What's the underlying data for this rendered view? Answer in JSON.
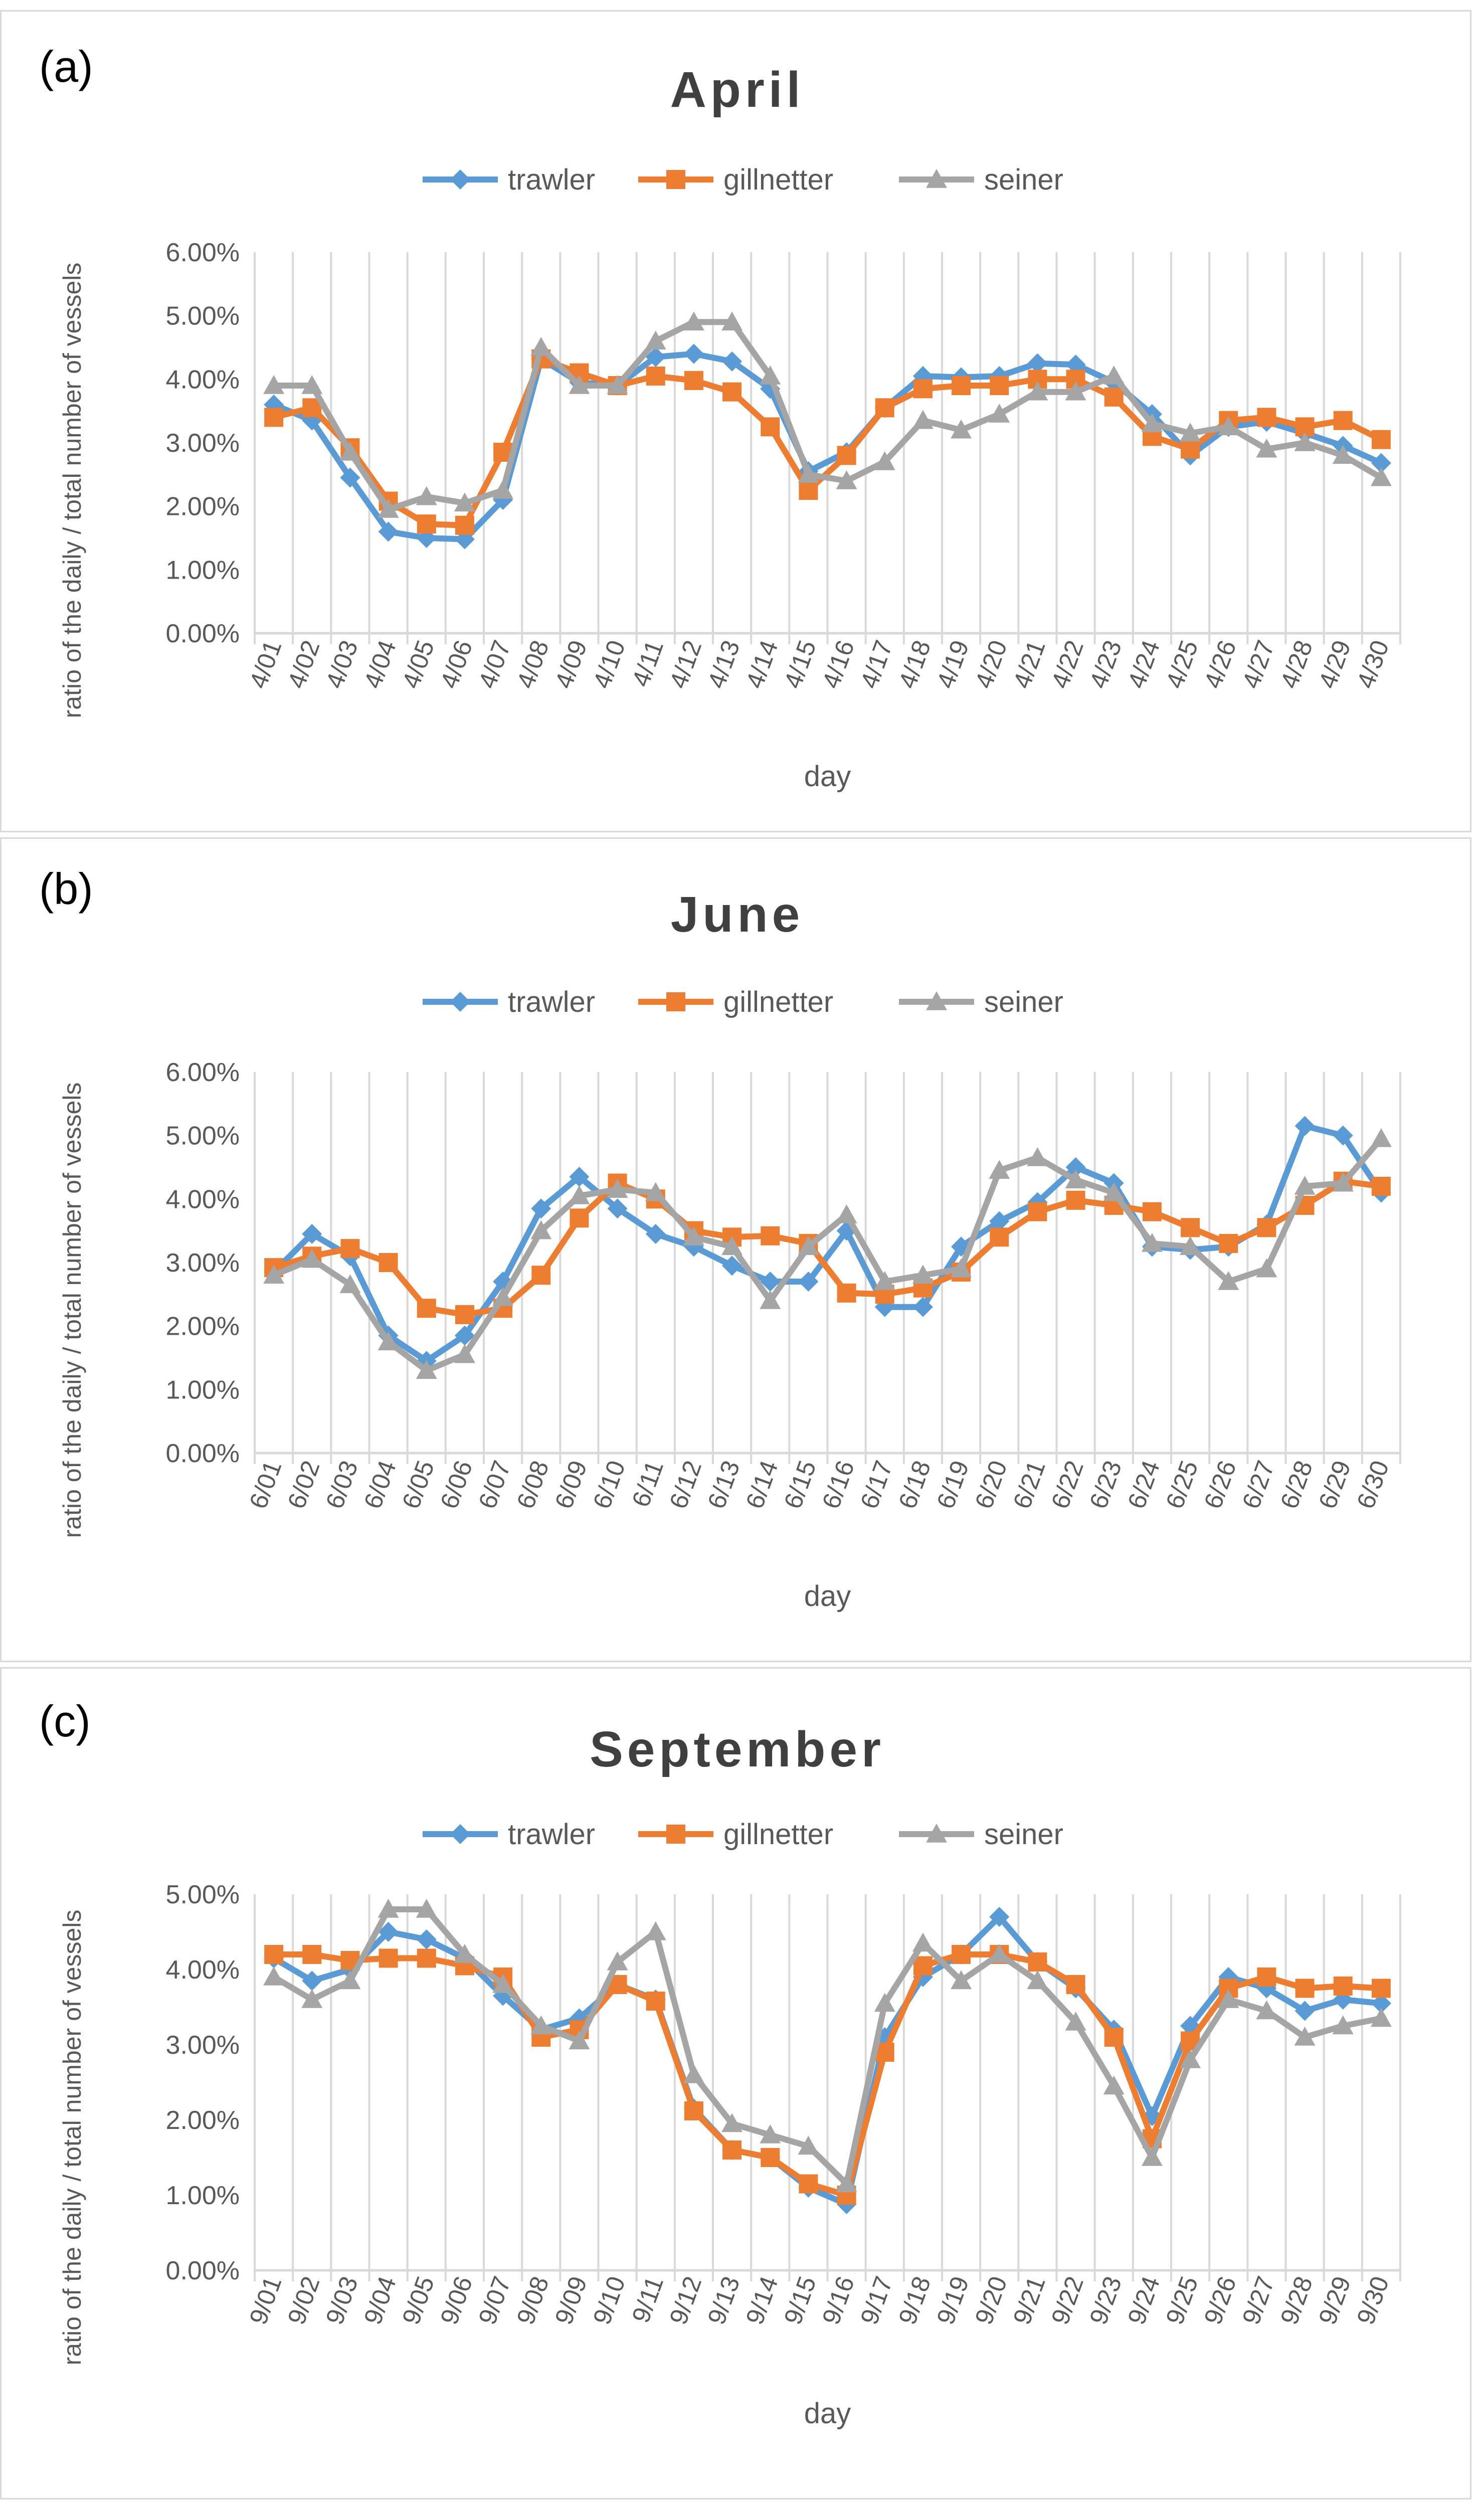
{
  "colors": {
    "trawler": "#5B9BD5",
    "gillnetter": "#ED7D31",
    "seiner": "#A5A5A5",
    "grid": "#D9D9D9",
    "axis_text": "#595959",
    "title_text": "#404040"
  },
  "chart_data": [
    {
      "type": "line",
      "panel_label": "(a)",
      "title": "April",
      "xlabel": "day",
      "ylabel": "ratio of the daily / total number of vessels",
      "ylim": [
        0,
        0.06
      ],
      "yticks": [
        "0.00%",
        "1.00%",
        "2.00%",
        "3.00%",
        "4.00%",
        "5.00%",
        "6.00%"
      ],
      "ytick_values": [
        0,
        0.01,
        0.02,
        0.03,
        0.04,
        0.05,
        0.06
      ],
      "grid": "vertical",
      "legend_position": "top",
      "categories": [
        "4/01",
        "4/02",
        "4/03",
        "4/04",
        "4/05",
        "4/06",
        "4/07",
        "4/08",
        "4/09",
        "4/10",
        "4/11",
        "4/12",
        "4/13",
        "4/14",
        "4/15",
        "4/16",
        "4/17",
        "4/18",
        "4/19",
        "4/20",
        "4/21",
        "4/22",
        "4/23",
        "4/24",
        "4/25",
        "4/26",
        "4/27",
        "4/28",
        "4/29",
        "4/30"
      ],
      "series": [
        {
          "name": "trawler",
          "marker": "diamond",
          "values": [
            0.036,
            0.0335,
            0.0245,
            0.016,
            0.015,
            0.0148,
            0.021,
            0.0432,
            0.0395,
            0.039,
            0.0435,
            0.044,
            0.0428,
            0.0385,
            0.0255,
            0.0285,
            0.0355,
            0.0405,
            0.0403,
            0.0405,
            0.0425,
            0.0423,
            0.0395,
            0.0345,
            0.028,
            0.0325,
            0.0333,
            0.0315,
            0.0295,
            0.0268
          ]
        },
        {
          "name": "gillnetter",
          "marker": "square",
          "values": [
            0.034,
            0.0355,
            0.0292,
            0.0208,
            0.0172,
            0.017,
            0.0285,
            0.0432,
            0.041,
            0.039,
            0.0405,
            0.0398,
            0.038,
            0.0325,
            0.0225,
            0.028,
            0.0355,
            0.0385,
            0.039,
            0.039,
            0.04,
            0.04,
            0.0372,
            0.031,
            0.029,
            0.0335,
            0.034,
            0.0325,
            0.0335,
            0.0305
          ]
        },
        {
          "name": "seiner",
          "marker": "triangle",
          "values": [
            0.039,
            0.039,
            0.0285,
            0.0195,
            0.0215,
            0.0205,
            0.0225,
            0.045,
            0.039,
            0.039,
            0.046,
            0.049,
            0.049,
            0.0405,
            0.025,
            0.024,
            0.027,
            0.0335,
            0.032,
            0.0345,
            0.038,
            0.038,
            0.0405,
            0.033,
            0.0315,
            0.0325,
            0.029,
            0.03,
            0.028,
            0.0245
          ]
        }
      ]
    },
    {
      "type": "line",
      "panel_label": "(b)",
      "title": "June",
      "xlabel": "day",
      "ylabel": "ratio of the daily / total number of vessels",
      "ylim": [
        0,
        0.06
      ],
      "yticks": [
        "0.00%",
        "1.00%",
        "2.00%",
        "3.00%",
        "4.00%",
        "5.00%",
        "6.00%"
      ],
      "ytick_values": [
        0,
        0.01,
        0.02,
        0.03,
        0.04,
        0.05,
        0.06
      ],
      "grid": "vertical",
      "legend_position": "top",
      "categories": [
        "6/01",
        "6/02",
        "6/03",
        "6/04",
        "6/05",
        "6/06",
        "6/07",
        "6/08",
        "6/09",
        "6/10",
        "6/11",
        "6/12",
        "6/13",
        "6/14",
        "6/15",
        "6/16",
        "6/17",
        "6/18",
        "6/19",
        "6/20",
        "6/21",
        "6/22",
        "6/23",
        "6/24",
        "6/25",
        "6/26",
        "6/27",
        "6/28",
        "6/29",
        "6/30"
      ],
      "series": [
        {
          "name": "trawler",
          "marker": "diamond",
          "values": [
            0.0285,
            0.0345,
            0.031,
            0.0185,
            0.0145,
            0.0185,
            0.027,
            0.0385,
            0.0435,
            0.0385,
            0.0345,
            0.0325,
            0.0295,
            0.027,
            0.027,
            0.035,
            0.023,
            0.023,
            0.0325,
            0.0365,
            0.0395,
            0.045,
            0.0425,
            0.0325,
            0.032,
            0.0325,
            0.036,
            0.0515,
            0.05,
            0.041
          ]
        },
        {
          "name": "gillnetter",
          "marker": "square",
          "values": [
            0.0292,
            0.031,
            0.0322,
            0.03,
            0.0228,
            0.0218,
            0.0228,
            0.028,
            0.037,
            0.0425,
            0.04,
            0.035,
            0.034,
            0.0342,
            0.033,
            0.0252,
            0.025,
            0.026,
            0.0285,
            0.034,
            0.038,
            0.0398,
            0.039,
            0.038,
            0.0355,
            0.033,
            0.0355,
            0.039,
            0.0428,
            0.042
          ]
        },
        {
          "name": "seiner",
          "marker": "triangle",
          "values": [
            0.028,
            0.0305,
            0.0265,
            0.0175,
            0.013,
            0.0155,
            0.0245,
            0.035,
            0.0405,
            0.0415,
            0.041,
            0.034,
            0.0325,
            0.024,
            0.0325,
            0.0375,
            0.027,
            0.028,
            0.029,
            0.0445,
            0.0465,
            0.043,
            0.041,
            0.033,
            0.0325,
            0.027,
            0.029,
            0.042,
            0.0425,
            0.0495
          ]
        }
      ]
    },
    {
      "type": "line",
      "panel_label": "(c)",
      "title": "September",
      "xlabel": "day",
      "ylabel": "ratio of the daily / total number of vessels",
      "ylim": [
        0,
        0.05
      ],
      "yticks": [
        "0.00%",
        "1.00%",
        "2.00%",
        "3.00%",
        "4.00%",
        "5.00%"
      ],
      "ytick_values": [
        0,
        0.01,
        0.02,
        0.03,
        0.04,
        0.05
      ],
      "grid": "vertical",
      "legend_position": "top",
      "categories": [
        "9/01",
        "9/02",
        "9/03",
        "9/04",
        "9/05",
        "9/06",
        "9/07",
        "9/08",
        "9/09",
        "9/10",
        "9/11",
        "9/12",
        "9/13",
        "9/14",
        "9/15",
        "9/16",
        "9/17",
        "9/18",
        "9/19",
        "9/20",
        "9/21",
        "9/22",
        "9/23",
        "9/24",
        "9/25",
        "9/26",
        "9/27",
        "9/28",
        "9/29",
        "9/30"
      ],
      "series": [
        {
          "name": "trawler",
          "marker": "diamond",
          "values": [
            0.0415,
            0.0385,
            0.04,
            0.045,
            0.044,
            0.0415,
            0.0365,
            0.032,
            0.0335,
            0.038,
            0.036,
            0.0215,
            0.016,
            0.015,
            0.011,
            0.0088,
            0.031,
            0.039,
            0.042,
            0.047,
            0.041,
            0.0375,
            0.032,
            0.0205,
            0.0325,
            0.039,
            0.0375,
            0.0345,
            0.036,
            0.0355
          ]
        },
        {
          "name": "gillnetter",
          "marker": "square",
          "values": [
            0.042,
            0.042,
            0.0412,
            0.0415,
            0.0415,
            0.0405,
            0.039,
            0.031,
            0.032,
            0.038,
            0.0358,
            0.0212,
            0.016,
            0.015,
            0.0115,
            0.01,
            0.029,
            0.0405,
            0.042,
            0.042,
            0.041,
            0.038,
            0.031,
            0.0175,
            0.0305,
            0.0375,
            0.039,
            0.0375,
            0.0378,
            0.0375
          ]
        },
        {
          "name": "seiner",
          "marker": "triangle",
          "values": [
            0.039,
            0.036,
            0.0385,
            0.048,
            0.048,
            0.042,
            0.038,
            0.0325,
            0.0305,
            0.041,
            0.045,
            0.026,
            0.0195,
            0.018,
            0.0165,
            0.0115,
            0.0355,
            0.0435,
            0.0385,
            0.042,
            0.0385,
            0.033,
            0.0245,
            0.015,
            0.028,
            0.036,
            0.0345,
            0.031,
            0.0325,
            0.0335
          ]
        }
      ]
    }
  ]
}
